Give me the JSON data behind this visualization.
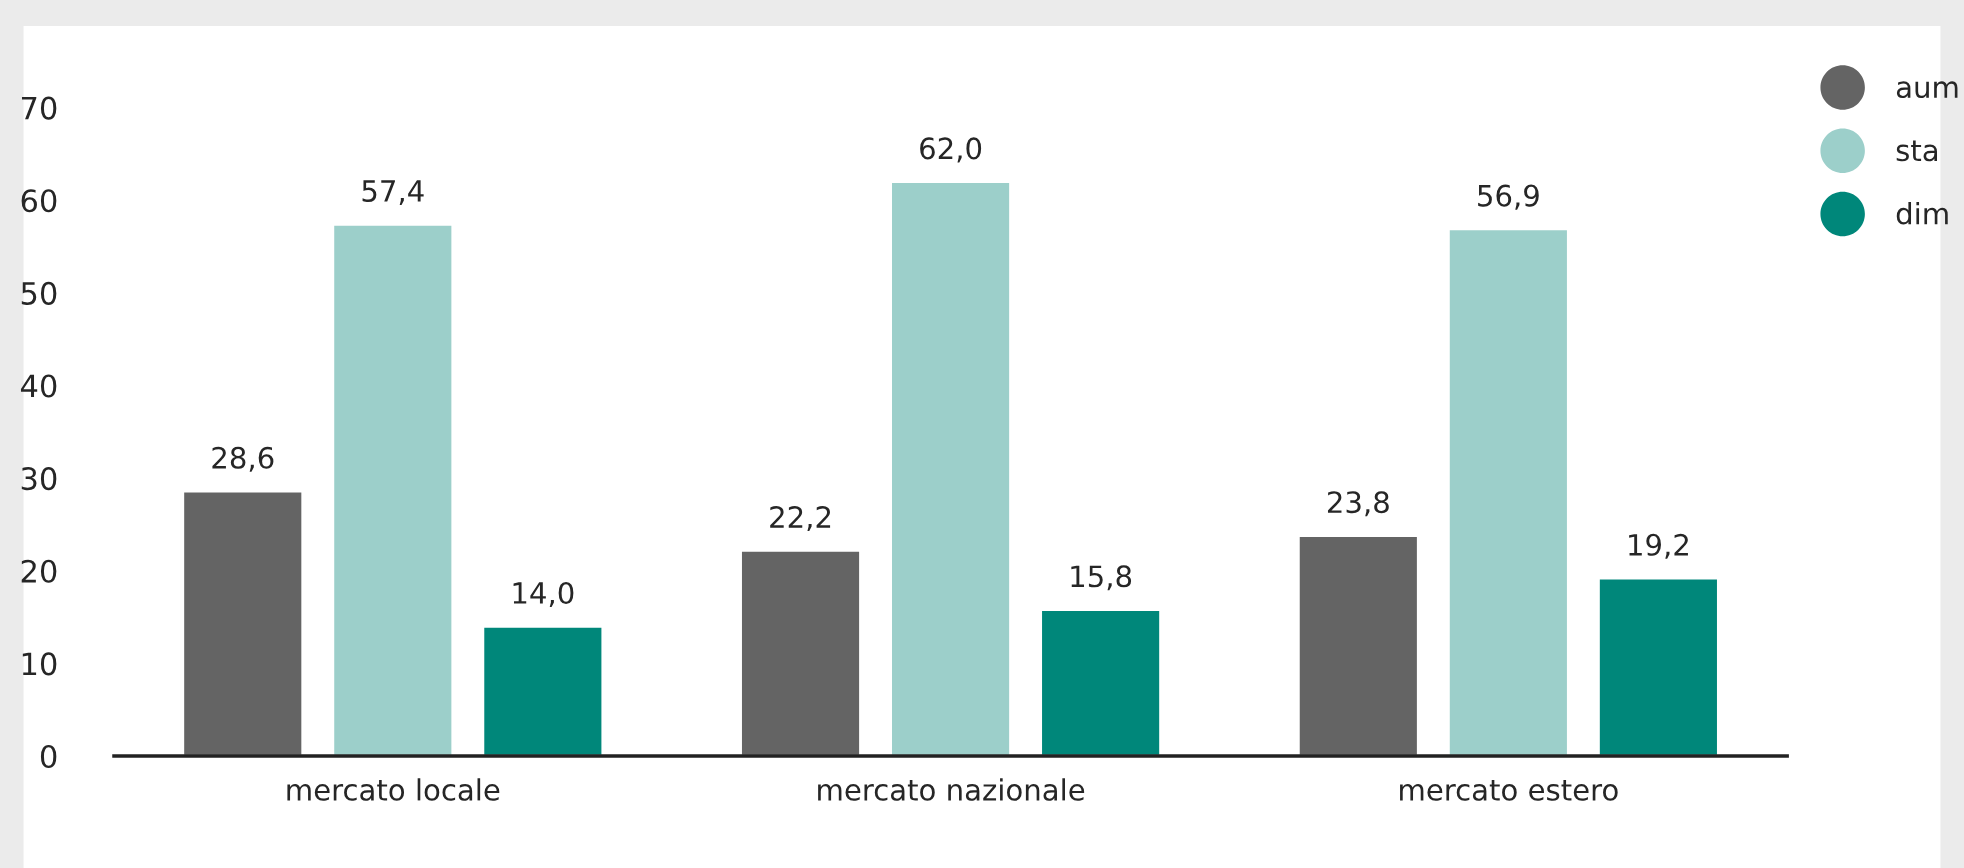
{
  "chart_data": {
    "type": "bar",
    "categories": [
      "mercato locale",
      "mercato nazionale",
      "mercato estero"
    ],
    "series": [
      {
        "name": "aum",
        "color": "#646464",
        "values": [
          28.6,
          22.2,
          23.8
        ],
        "value_labels": [
          "28,6",
          "22,2",
          "23,8"
        ]
      },
      {
        "name": "sta",
        "color": "#9ccfca",
        "values": [
          57.4,
          62.0,
          56.9
        ],
        "value_labels": [
          "57,4",
          "62,0",
          "56,9"
        ]
      },
      {
        "name": "dim",
        "color": "#00877a",
        "values": [
          14.0,
          15.8,
          19.2
        ],
        "value_labels": [
          "14,0",
          "15,8",
          "19,2"
        ]
      }
    ],
    "ylim": [
      0,
      70
    ],
    "yticks": [
      0,
      10,
      20,
      30,
      40,
      50,
      60,
      70
    ],
    "grid": false,
    "legend": "top right"
  }
}
